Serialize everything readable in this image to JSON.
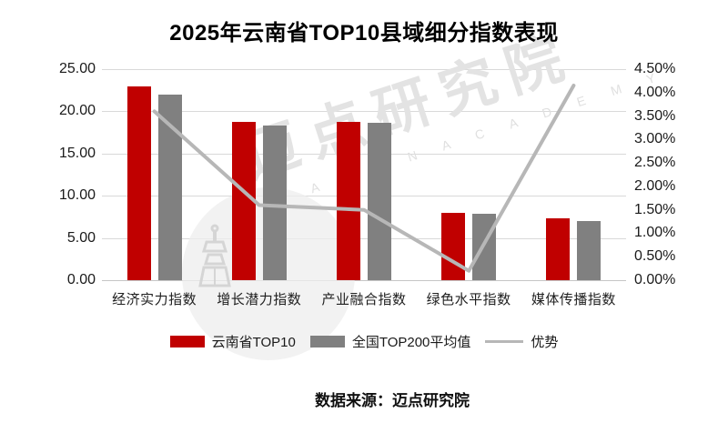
{
  "title": "2025年云南省TOP10县域细分指数表现",
  "footer": {
    "source_label": "数据来源：迈点研究院"
  },
  "watermark": {
    "cn_text": "迈点研究院",
    "en_text": "M E A D I N  A C A D E M Y",
    "tower_icon": "tower-logo-icon"
  },
  "legend": [
    {
      "label": "云南省TOP10",
      "type": "bar",
      "color": "#c00000"
    },
    {
      "label": "全国TOP200平均值",
      "type": "bar",
      "color": "#808080"
    },
    {
      "label": "优势",
      "type": "line",
      "color": "#b7b7b7"
    }
  ],
  "colors": {
    "bar_yunnan": "#c00000",
    "bar_national": "#808080",
    "advantage_line": "#b7b7b7",
    "gridline": "#d9d9d9",
    "axis_text": "#1a1a1a",
    "watermark": "#e3e3e3",
    "background": "#ffffff"
  },
  "chart_data": {
    "type": "bar",
    "subtype": "grouped-bars-with-secondary-axis-line",
    "title": "2025年云南省TOP10县域细分指数表现",
    "categories": [
      "经济实力指数",
      "增长潜力指数",
      "产业融合指数",
      "绿色水平指数",
      "媒体传播指数"
    ],
    "series": [
      {
        "name": "云南省TOP10",
        "type": "bar",
        "axis": "left",
        "color": "#c00000",
        "values": [
          22.9,
          18.7,
          18.8,
          8.0,
          7.3
        ]
      },
      {
        "name": "全国TOP200平均值",
        "type": "bar",
        "axis": "left",
        "color": "#808080",
        "values": [
          22.0,
          18.3,
          18.6,
          7.9,
          7.0
        ]
      },
      {
        "name": "优势",
        "type": "line",
        "axis": "right",
        "color": "#b7b7b7",
        "values": [
          3.6,
          1.6,
          1.5,
          0.2,
          4.15
        ],
        "unit": "%"
      }
    ],
    "left_axis": {
      "min": 0,
      "max": 25,
      "step": 5,
      "tick_labels": [
        "25.00",
        "20.00",
        "15.00",
        "10.00",
        "5.00",
        "0.00"
      ]
    },
    "right_axis": {
      "min": 0,
      "max": 4.5,
      "step": 0.5,
      "tick_labels": [
        "4.50%",
        "4.00%",
        "3.50%",
        "3.00%",
        "2.50%",
        "2.00%",
        "1.50%",
        "1.00%",
        "0.50%",
        "0.00%"
      ]
    },
    "grid": "horizontal",
    "legend_position": "bottom",
    "data_source": "数据来源：迈点研究院"
  }
}
